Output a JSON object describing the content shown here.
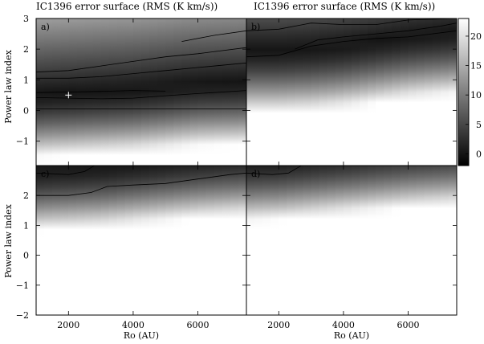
{
  "figure": {
    "titles": [
      "IC1396 error surface (RMS (K km/s))",
      "IC1396 error surface (RMS (K km/s))"
    ],
    "ylabel": "Power law index",
    "xlabel": "Ro (AU)"
  },
  "chart_data": {
    "type": "heatmap",
    "title": "IC1396 error surface (RMS (K km/s))",
    "xlabel": "Ro (AU)",
    "ylabel": "Power law index",
    "xlim": [
      1000,
      7500
    ],
    "ylim": [
      -2,
      3
    ],
    "xticks": [
      2000,
      4000,
      6000
    ],
    "yticks": [
      -2,
      -1,
      0,
      1,
      2,
      3
    ],
    "colorbar": {
      "range": [
        -2,
        23
      ],
      "ticks": [
        0,
        5,
        10,
        15,
        20
      ],
      "cmap": "gray"
    },
    "panels": [
      {
        "label": "a)",
        "yticks": [
          -1,
          0,
          1,
          2,
          3
        ],
        "minimum": {
          "x": 2000,
          "y": 0.5,
          "marker": "+"
        },
        "band": {
          "min_y": [
            0.55,
            0.6,
            0.65,
            0.7,
            0.8,
            0.9,
            0.95
          ],
          "x": [
            1000,
            2000,
            3000,
            4000,
            5000,
            6000,
            7500
          ]
        },
        "contours": [
          {
            "x": [
              1000,
              2000,
              3000,
              4000,
              5000
            ],
            "y": [
              0.58,
              0.6,
              0.62,
              0.65,
              0.63
            ]
          },
          {
            "x": [
              1000,
              2000,
              3000,
              4000,
              5000,
              6000,
              7500
            ],
            "y": [
              0.42,
              0.4,
              0.38,
              0.4,
              0.48,
              0.55,
              0.65
            ]
          },
          {
            "x": [
              1000,
              3000,
              5000,
              7500
            ],
            "y": [
              0.05,
              0.05,
              0.05,
              0.05
            ]
          },
          {
            "x": [
              1000,
              2000,
              3000,
              4000,
              5000,
              6000,
              7500
            ],
            "y": [
              1.25,
              1.3,
              1.45,
              1.6,
              1.75,
              1.85,
              2.05
            ]
          },
          {
            "x": [
              1000,
              2000,
              3000,
              4000,
              5000,
              6000,
              7500
            ],
            "y": [
              1.05,
              1.05,
              1.1,
              1.2,
              1.3,
              1.4,
              1.55
            ]
          },
          {
            "x": [
              5500,
              6500,
              7500
            ],
            "y": [
              2.25,
              2.45,
              2.6
            ]
          }
        ]
      },
      {
        "label": "b)",
        "yticks": [
          -1,
          0,
          1,
          2,
          3
        ],
        "band": {
          "min_y": [
            2.0,
            2.0,
            2.05,
            2.15,
            2.3,
            2.45,
            2.6
          ],
          "x": [
            1000,
            2000,
            3000,
            4000,
            5000,
            6000,
            7500
          ]
        },
        "contours": [
          {
            "x": [
              1000,
              2000,
              3000,
              4000,
              5000,
              6000,
              7500
            ],
            "y": [
              2.6,
              2.65,
              2.85,
              2.8,
              2.8,
              2.95,
              3.0
            ]
          },
          {
            "x": [
              1000,
              2000,
              3000,
              4000,
              5000,
              6000,
              7500
            ],
            "y": [
              1.75,
              1.8,
              2.1,
              2.25,
              2.35,
              2.4,
              2.6
            ]
          },
          {
            "x": [
              2500,
              3200,
              4000,
              5000,
              6000,
              7000,
              7500
            ],
            "y": [
              2.0,
              2.3,
              2.4,
              2.5,
              2.6,
              2.75,
              2.85
            ]
          }
        ]
      },
      {
        "label": "c)",
        "yticks": [
          -2,
          -1,
          0,
          1,
          2
        ],
        "band": {
          "min_y": [
            2.9,
            2.95,
            3.0,
            3.1,
            3.2,
            3.3,
            3.4
          ],
          "x": [
            1000,
            2000,
            3000,
            4000,
            5000,
            6000,
            7500
          ]
        },
        "contours": [
          {
            "x": [
              1000,
              2000,
              2700,
              3200,
              4000,
              5000,
              6000,
              7000,
              7500
            ],
            "y": [
              2.0,
              2.0,
              2.1,
              2.3,
              2.35,
              2.4,
              2.55,
              2.7,
              2.75
            ]
          },
          {
            "x": [
              1000,
              2000,
              2500,
              2800
            ],
            "y": [
              2.75,
              2.7,
              2.8,
              3.0
            ]
          }
        ]
      },
      {
        "label": "d)",
        "yticks": [
          -2,
          -1,
          0,
          1,
          2
        ],
        "band": {
          "min_y": [
            3.2,
            3.25,
            3.35,
            3.45,
            3.55,
            3.65,
            3.75
          ],
          "x": [
            1000,
            2000,
            3000,
            4000,
            5000,
            6000,
            7500
          ]
        },
        "contours": [
          {
            "x": [
              1000,
              1800,
              2300,
              2700
            ],
            "y": [
              2.75,
              2.7,
              2.75,
              3.0
            ]
          }
        ]
      }
    ]
  }
}
